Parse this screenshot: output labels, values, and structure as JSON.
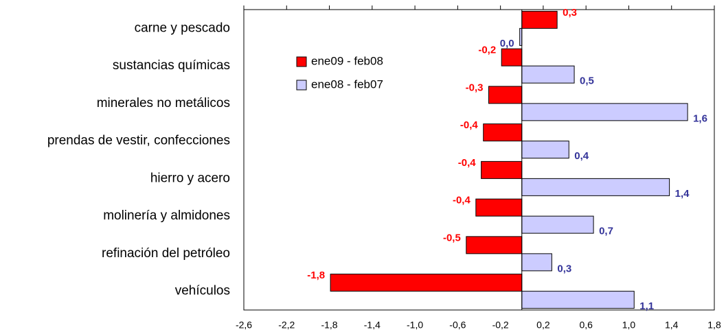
{
  "chart_data": {
    "type": "barh",
    "categories": [
      "carne y pescado",
      "sustancias químicas",
      "minerales no metálicos",
      "prendas de vestir, confecciones",
      "hierro y acero",
      "molinería y almidones",
      "refinación del petróleo",
      "vehículos"
    ],
    "series": [
      {
        "name": "ene09 - feb08",
        "color": "#ff0000",
        "label_color": "#ff0000",
        "values": [
          0.33,
          -0.19,
          -0.31,
          -0.36,
          -0.38,
          -0.43,
          -0.52,
          -1.79
        ],
        "value_labels": [
          "0,3",
          "-0,2",
          "-0,3",
          "-0,4",
          "-0,4",
          "-0,4",
          "-0,5",
          "-1,8"
        ]
      },
      {
        "name": "ene08 - feb07",
        "color": "#ccccff",
        "label_color": "#333399",
        "values": [
          -0.02,
          0.49,
          1.55,
          0.44,
          1.38,
          0.67,
          0.28,
          1.05
        ],
        "value_labels": [
          "0,0",
          "0,5",
          "1,6",
          "0,4",
          "1,4",
          "0,7",
          "0,3",
          "1,1"
        ]
      }
    ],
    "xlim": [
      -2.6,
      1.8
    ],
    "xticks": [
      {
        "value": -2.6,
        "label": "-2,6"
      },
      {
        "value": -2.2,
        "label": "-2,2"
      },
      {
        "value": -1.8,
        "label": "-1,8"
      },
      {
        "value": -1.4,
        "label": "-1,4"
      },
      {
        "value": -1.0,
        "label": "-1,0"
      },
      {
        "value": -0.6,
        "label": "-0,6"
      },
      {
        "value": -0.2,
        "label": "-0,2"
      },
      {
        "value": 0.2,
        "label": "0,2"
      },
      {
        "value": 0.6,
        "label": "0,6"
      },
      {
        "value": 1.0,
        "label": "1,0"
      },
      {
        "value": 1.4,
        "label": "1,4"
      },
      {
        "value": 1.8,
        "label": "1,8"
      }
    ],
    "legend": "upper left"
  }
}
